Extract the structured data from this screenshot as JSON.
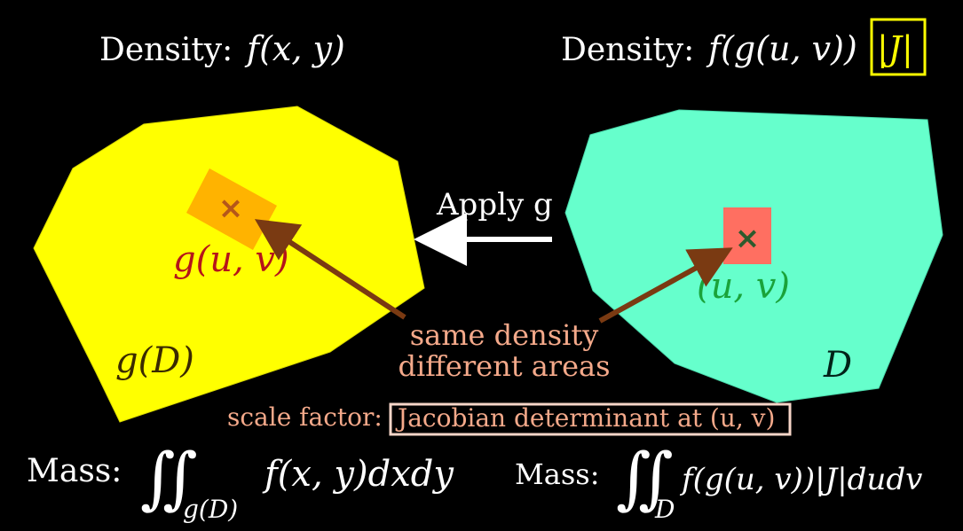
{
  "headings": {
    "left_label": "Density:",
    "left_formula": "f(x, y)",
    "right_label": "Density:",
    "right_formula": "f(g(u, v))",
    "right_jacobian": "|J|"
  },
  "arrow_label": "Apply g",
  "left_region": {
    "region_label": "g(D)",
    "point_label": "g(u, v)",
    "fill_color": "#ffff00",
    "patch_color": "#ffb300",
    "marker_color": "#b5561a"
  },
  "right_region": {
    "region_label": "D",
    "point_label": "(u, v)",
    "fill_color": "#66ffcc",
    "patch_color": "#ff6f61",
    "marker_color": "#2d5a2d"
  },
  "annotation": {
    "line1": "same density",
    "line2": "different areas",
    "color": "#f4a98a",
    "arrow_color": "#7a3a12"
  },
  "scale_factor": {
    "label": "scale factor:",
    "boxed_text": "Jacobian determinant at (u, v)"
  },
  "mass": {
    "left_label": "Mass:",
    "left_integral": "∬",
    "left_subscript": "g(D)",
    "left_integrand": "f(x, y)dxdy",
    "right_label": "Mass:",
    "right_integral": "∬",
    "right_subscript": "D",
    "right_integrand": "f(g(u, v))|J|dudv"
  }
}
